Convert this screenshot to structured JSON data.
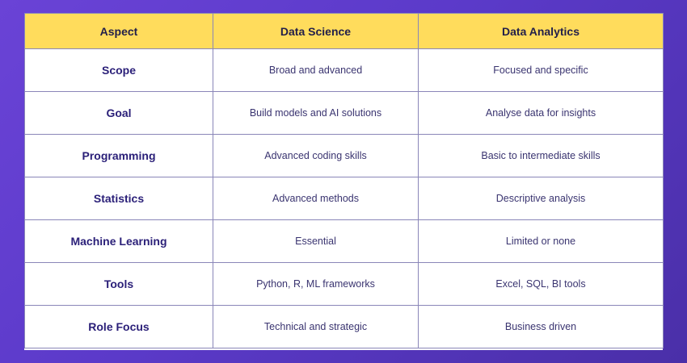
{
  "table": {
    "headers": [
      "Aspect",
      "Data Science",
      "Data Analytics"
    ],
    "rows": [
      {
        "aspect": "Scope",
        "data_science": "Broad and advanced",
        "data_analytics": "Focused and specific"
      },
      {
        "aspect": "Goal",
        "data_science": "Build models and AI solutions",
        "data_analytics": "Analyse data for insights"
      },
      {
        "aspect": "Programming",
        "data_science": "Advanced coding skills",
        "data_analytics": "Basic to intermediate skills"
      },
      {
        "aspect": "Statistics",
        "data_science": "Advanced methods",
        "data_analytics": "Descriptive analysis"
      },
      {
        "aspect": "Machine Learning",
        "data_science": "Essential",
        "data_analytics": "Limited or none"
      },
      {
        "aspect": "Tools",
        "data_science": "Python, R, ML frameworks",
        "data_analytics": "Excel, SQL, BI tools"
      },
      {
        "aspect": "Role Focus",
        "data_science": "Technical and strategic",
        "data_analytics": "Business driven"
      }
    ]
  },
  "colors": {
    "background": "#5b3ac9",
    "header": "#ffdc5c",
    "text": "#2a1f78"
  }
}
